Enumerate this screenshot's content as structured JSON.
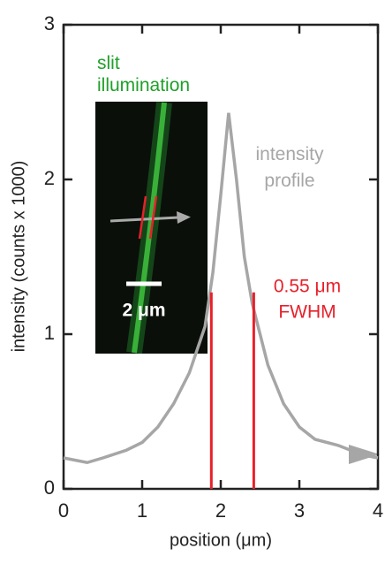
{
  "chart_data": {
    "type": "line",
    "x_label": "position (μm)",
    "y_label": "intensity (counts x 1000)",
    "x": [
      0,
      0.3,
      0.5,
      0.8,
      1.0,
      1.2,
      1.4,
      1.6,
      1.8,
      1.9,
      2.0,
      2.1,
      2.2,
      2.3,
      2.4,
      2.6,
      2.8,
      3.0,
      3.2,
      3.5,
      3.8,
      4.0
    ],
    "series": [
      {
        "name": "intensity profile",
        "color": "#a6a6a6",
        "values": [
          0.2,
          0.17,
          0.2,
          0.25,
          0.3,
          0.4,
          0.55,
          0.75,
          1.05,
          1.4,
          1.9,
          2.43,
          2.0,
          1.5,
          1.2,
          0.8,
          0.55,
          0.4,
          0.32,
          0.28,
          0.22,
          0.2
        ]
      }
    ],
    "xlim": [
      0,
      4
    ],
    "xticks": [
      0,
      1,
      2,
      3,
      4
    ],
    "ylim": [
      0,
      3
    ],
    "yticks": [
      0,
      1,
      2,
      3
    ],
    "fwhm": {
      "label": "0.55 μm",
      "sublabel": "FWHM",
      "color": "#e8202a",
      "x": [
        1.88,
        2.42
      ],
      "y": 1.27
    },
    "inset": {
      "label": "slit illumination",
      "scale_label": "2 μm",
      "color": "#1fa02a"
    }
  }
}
